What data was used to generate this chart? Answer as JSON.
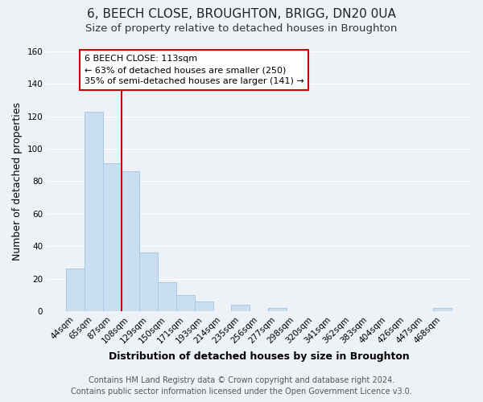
{
  "title": "6, BEECH CLOSE, BROUGHTON, BRIGG, DN20 0UA",
  "subtitle": "Size of property relative to detached houses in Broughton",
  "xlabel": "Distribution of detached houses by size in Broughton",
  "ylabel": "Number of detached properties",
  "bar_labels": [
    "44sqm",
    "65sqm",
    "87sqm",
    "108sqm",
    "129sqm",
    "150sqm",
    "171sqm",
    "193sqm",
    "214sqm",
    "235sqm",
    "256sqm",
    "277sqm",
    "298sqm",
    "320sqm",
    "341sqm",
    "362sqm",
    "383sqm",
    "404sqm",
    "426sqm",
    "447sqm",
    "468sqm"
  ],
  "bar_values": [
    26,
    123,
    91,
    86,
    36,
    18,
    10,
    6,
    0,
    4,
    0,
    2,
    0,
    0,
    0,
    0,
    0,
    0,
    0,
    0,
    2
  ],
  "bar_color": "#c9dff0",
  "bar_edge_color": "#a8c8e8",
  "vline_color": "#cc0000",
  "vline_position": 2.5,
  "ylim": [
    0,
    160
  ],
  "yticks": [
    0,
    20,
    40,
    60,
    80,
    100,
    120,
    140,
    160
  ],
  "annotation_title": "6 BEECH CLOSE: 113sqm",
  "annotation_line1": "← 63% of detached houses are smaller (250)",
  "annotation_line2": "35% of semi-detached houses are larger (141) →",
  "annotation_box_facecolor": "#ffffff",
  "annotation_box_edgecolor": "#cc0000",
  "footer_line1": "Contains HM Land Registry data © Crown copyright and database right 2024.",
  "footer_line2": "Contains public sector information licensed under the Open Government Licence v3.0.",
  "background_color": "#eef2f7",
  "grid_color": "#ffffff",
  "title_fontsize": 11,
  "subtitle_fontsize": 9.5,
  "axis_label_fontsize": 9,
  "tick_fontsize": 7.5,
  "annotation_fontsize": 8,
  "footer_fontsize": 7
}
